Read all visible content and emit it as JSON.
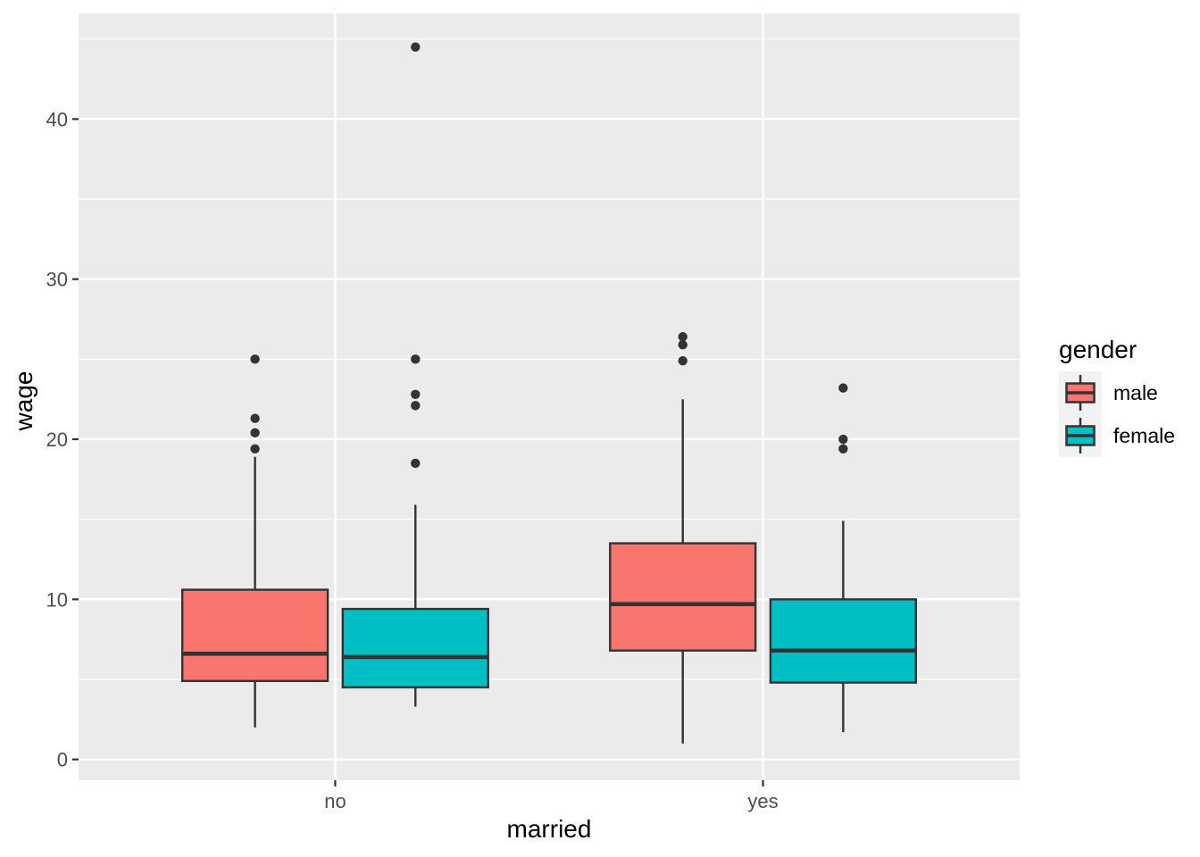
{
  "figure": {
    "background": "#FFFFFF",
    "panel_background": "#EBEBEB",
    "grid_color": "#FFFFFF"
  },
  "chart_data": {
    "type": "boxplot",
    "xlabel": "married",
    "ylabel": "wage",
    "categories": [
      "no",
      "yes"
    ],
    "ylim": [
      -1.3,
      46.6
    ],
    "yticks": [
      0,
      10,
      20,
      30,
      40
    ],
    "yticks_minor": [
      5,
      15,
      25,
      35,
      45
    ],
    "grid": true,
    "legend": {
      "title": "gender",
      "position": "right",
      "entries": [
        {
          "label": "male",
          "color": "#F8766D"
        },
        {
          "label": "female",
          "color": "#00BFC4"
        }
      ]
    },
    "series": [
      {
        "name": "male",
        "color": "#F8766D",
        "boxes": [
          {
            "category": "no",
            "whisker_low": 2.0,
            "q1": 4.9,
            "median": 6.6,
            "q3": 10.6,
            "whisker_high": 18.9,
            "outliers": [
              19.4,
              20.4,
              21.3,
              25.0
            ]
          },
          {
            "category": "yes",
            "whisker_low": 1.0,
            "q1": 6.8,
            "median": 9.7,
            "q3": 13.5,
            "whisker_high": 22.5,
            "outliers": [
              24.9,
              25.9,
              26.4
            ]
          }
        ]
      },
      {
        "name": "female",
        "color": "#00BFC4",
        "boxes": [
          {
            "category": "no",
            "whisker_low": 3.3,
            "q1": 4.5,
            "median": 6.4,
            "q3": 9.4,
            "whisker_high": 15.9,
            "outliers": [
              18.5,
              22.1,
              22.8,
              25.0,
              44.5
            ]
          },
          {
            "category": "yes",
            "whisker_low": 1.7,
            "q1": 4.8,
            "median": 6.8,
            "q3": 10.0,
            "whisker_high": 14.9,
            "outliers": [
              19.4,
              20.0,
              23.2
            ]
          }
        ]
      }
    ],
    "style": {
      "box_outline": "#333333",
      "outlier_color": "#333333",
      "axis_text_color": "#4D4D4D",
      "axis_title_color": "#000000",
      "legend_key_background": "#F2F2F2"
    }
  }
}
